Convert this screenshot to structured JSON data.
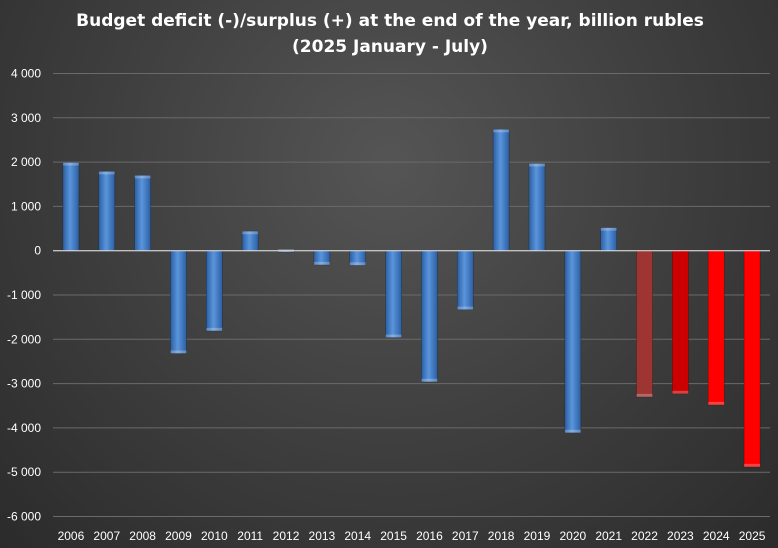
{
  "chart_data": {
    "type": "bar",
    "title": "Budget deficit (-)/surplus (+) at the end of the year, billion rubles (2025 January - July)",
    "xlabel": "",
    "ylabel": "",
    "ylim": [
      -6000,
      4000
    ],
    "yticks": [
      4000,
      3000,
      2000,
      1000,
      0,
      -1000,
      -2000,
      -3000,
      -4000,
      -5000,
      -6000
    ],
    "ytick_labels": [
      "4 000",
      "3 000",
      "2 000",
      "1 000",
      "0",
      "-1 000",
      "-2 000",
      "-3 000",
      "-4 000",
      "-5 000",
      "-6 000"
    ],
    "grid": true,
    "legend": "none",
    "categories": [
      "2006",
      "2007",
      "2008",
      "2009",
      "2010",
      "2011",
      "2012",
      "2013",
      "2014",
      "2015",
      "2016",
      "2017",
      "2018",
      "2019",
      "2020",
      "2021",
      "2022",
      "2023",
      "2024",
      "2025"
    ],
    "values": [
      1990,
      1790,
      1700,
      -2320,
      -1810,
      440,
      -30,
      -320,
      -330,
      -1960,
      -2960,
      -1330,
      2740,
      1970,
      -4110,
      520,
      -3300,
      -3230,
      -3480,
      -4880
    ],
    "bar_colors": [
      "#3d7ac8",
      "#3d7ac8",
      "#3d7ac8",
      "#3d7ac8",
      "#3d7ac8",
      "#3d7ac8",
      "#3d7ac8",
      "#3d7ac8",
      "#3d7ac8",
      "#3d7ac8",
      "#3d7ac8",
      "#3d7ac8",
      "#3d7ac8",
      "#3d7ac8",
      "#3d7ac8",
      "#3d7ac8",
      "#9e3532",
      "#cc0000",
      "#ff0000",
      "#ff0000"
    ]
  }
}
